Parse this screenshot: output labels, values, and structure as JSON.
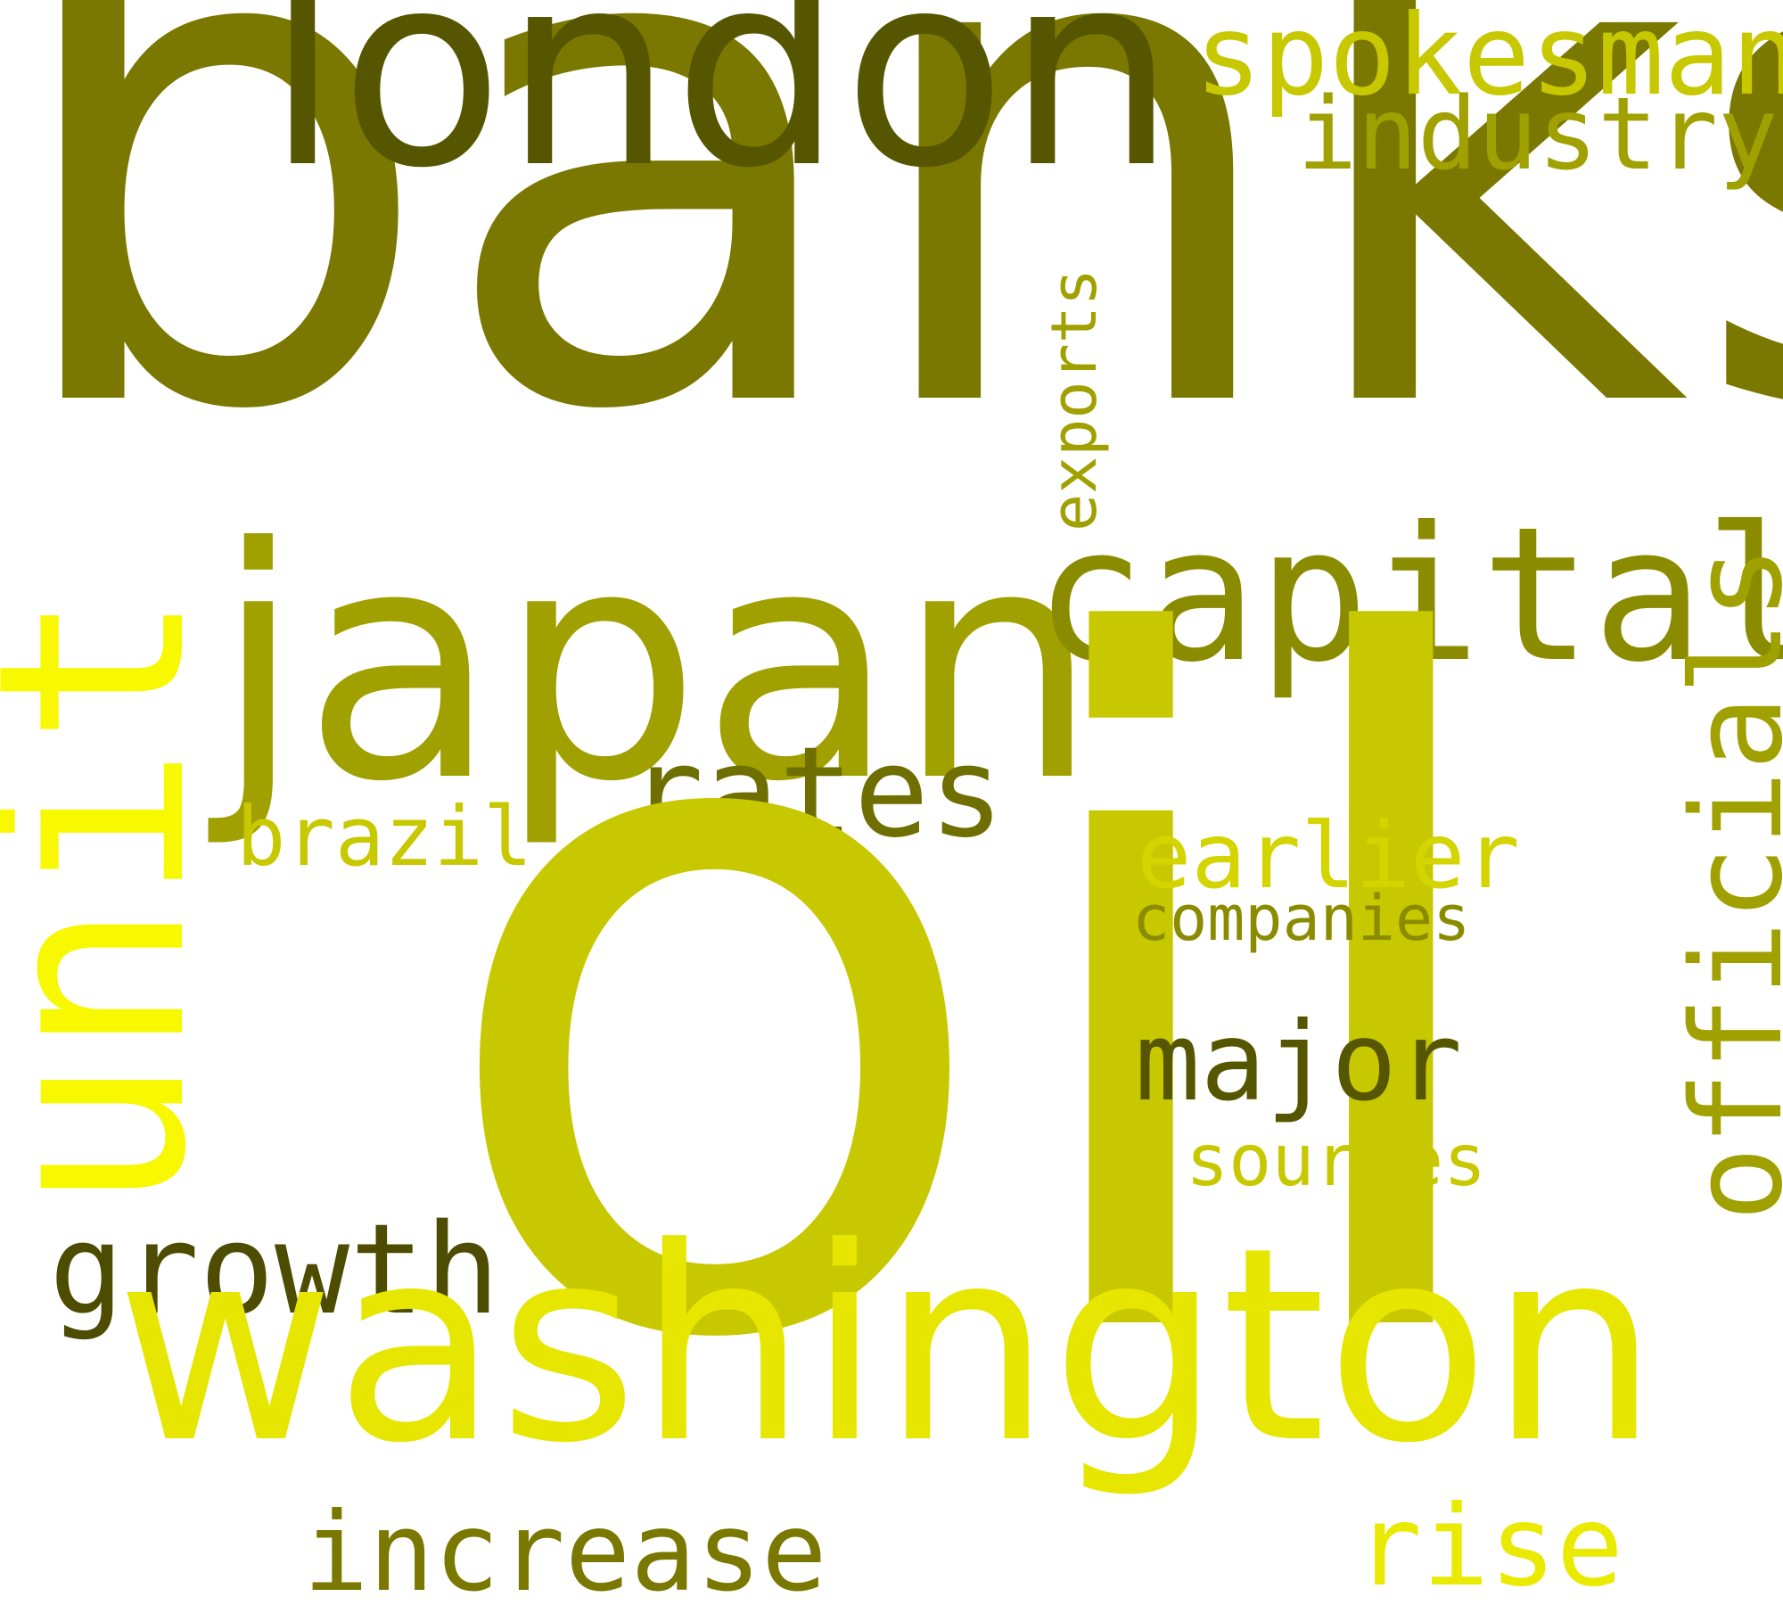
{
  "words": {
    "banks": {
      "text": "banks",
      "color": "#7a7800"
    },
    "oil": {
      "text": "oil",
      "color": "#c8c800"
    },
    "washington": {
      "text": "washington",
      "color": "#e6e600"
    },
    "london": {
      "text": "london",
      "color": "#575600"
    },
    "spokesman": {
      "text": "spokesman",
      "color": "#c8c800"
    },
    "industry": {
      "text": "industry",
      "color": "#a0a000"
    },
    "exports": {
      "text": "exports",
      "color": "#a0a000"
    },
    "japan": {
      "text": "japan",
      "color": "#a0a000"
    },
    "capital": {
      "text": "capital",
      "color": "#8b8b00"
    },
    "unit": {
      "text": "unit",
      "color": "#f8f800"
    },
    "rates": {
      "text": "rates",
      "color": "#6f6e00"
    },
    "brazil": {
      "text": "brazil",
      "color": "#c8c800"
    },
    "earlier": {
      "text": "earlier",
      "color": "#d4d400"
    },
    "companies": {
      "text": "companies",
      "color": "#8b8b00"
    },
    "officials": {
      "text": "officials",
      "color": "#a0a000"
    },
    "major": {
      "text": "major",
      "color": "#575600"
    },
    "sources": {
      "text": "sources",
      "color": "#c8c800"
    },
    "growth": {
      "text": "growth",
      "color": "#4d4c00"
    },
    "increase": {
      "text": "increase",
      "color": "#7a7800"
    },
    "rise": {
      "text": "rise",
      "color": "#eaea00"
    }
  }
}
